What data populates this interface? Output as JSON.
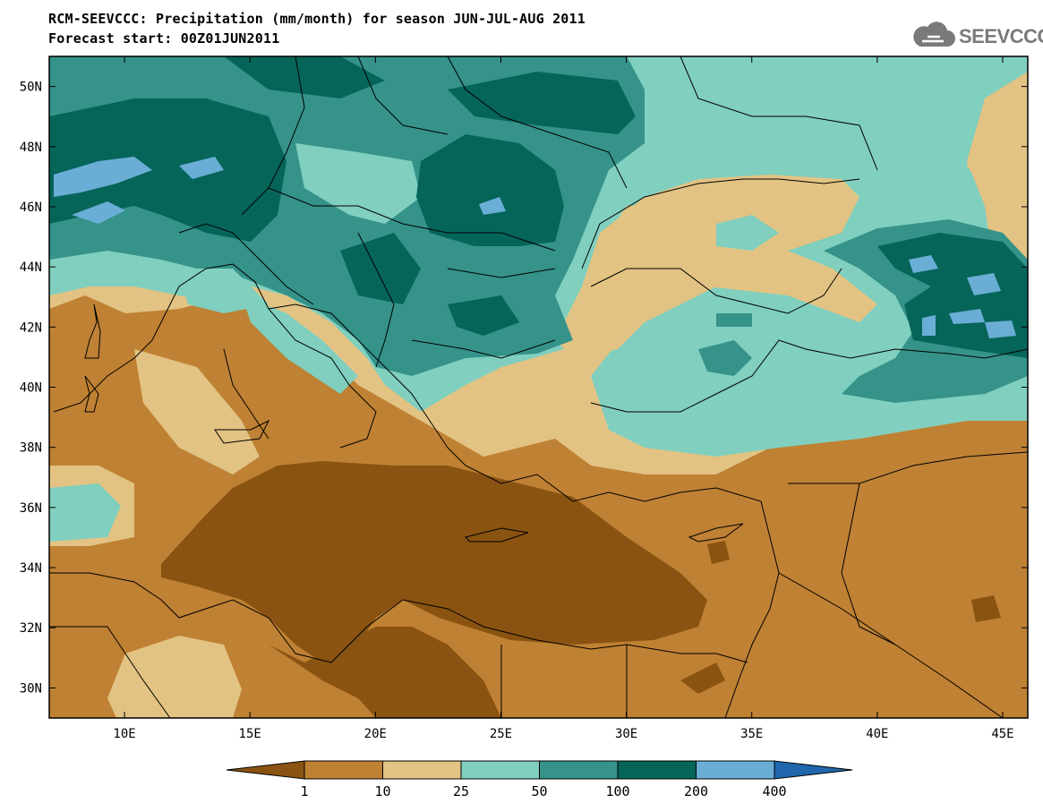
{
  "header": {
    "title_line1": "RCM-SEEVCCC: Precipitation (mm/month) for season JUN-JUL-AUG 2011",
    "title_line2": "Forecast start: 00Z01JUN2011",
    "logo_text": "SEEVCCC",
    "logo_icon": "cloud-icon"
  },
  "map": {
    "lon_range": [
      7,
      46
    ],
    "lat_range": [
      29,
      51
    ],
    "lon_ticks": [
      "10E",
      "15E",
      "20E",
      "25E",
      "30E",
      "35E",
      "40E",
      "45E"
    ],
    "lat_ticks": [
      "30N",
      "32N",
      "34N",
      "36N",
      "38N",
      "40N",
      "42N",
      "44N",
      "46N",
      "48N",
      "50N"
    ]
  },
  "colorbar": {
    "levels": [
      "1",
      "10",
      "25",
      "50",
      "100",
      "200",
      "400"
    ],
    "colors": [
      "#8a5312",
      "#bf8133",
      "#e2c383",
      "#80cfbf",
      "#359389",
      "#056559",
      "#6aaed6",
      "#2166ac"
    ]
  }
}
